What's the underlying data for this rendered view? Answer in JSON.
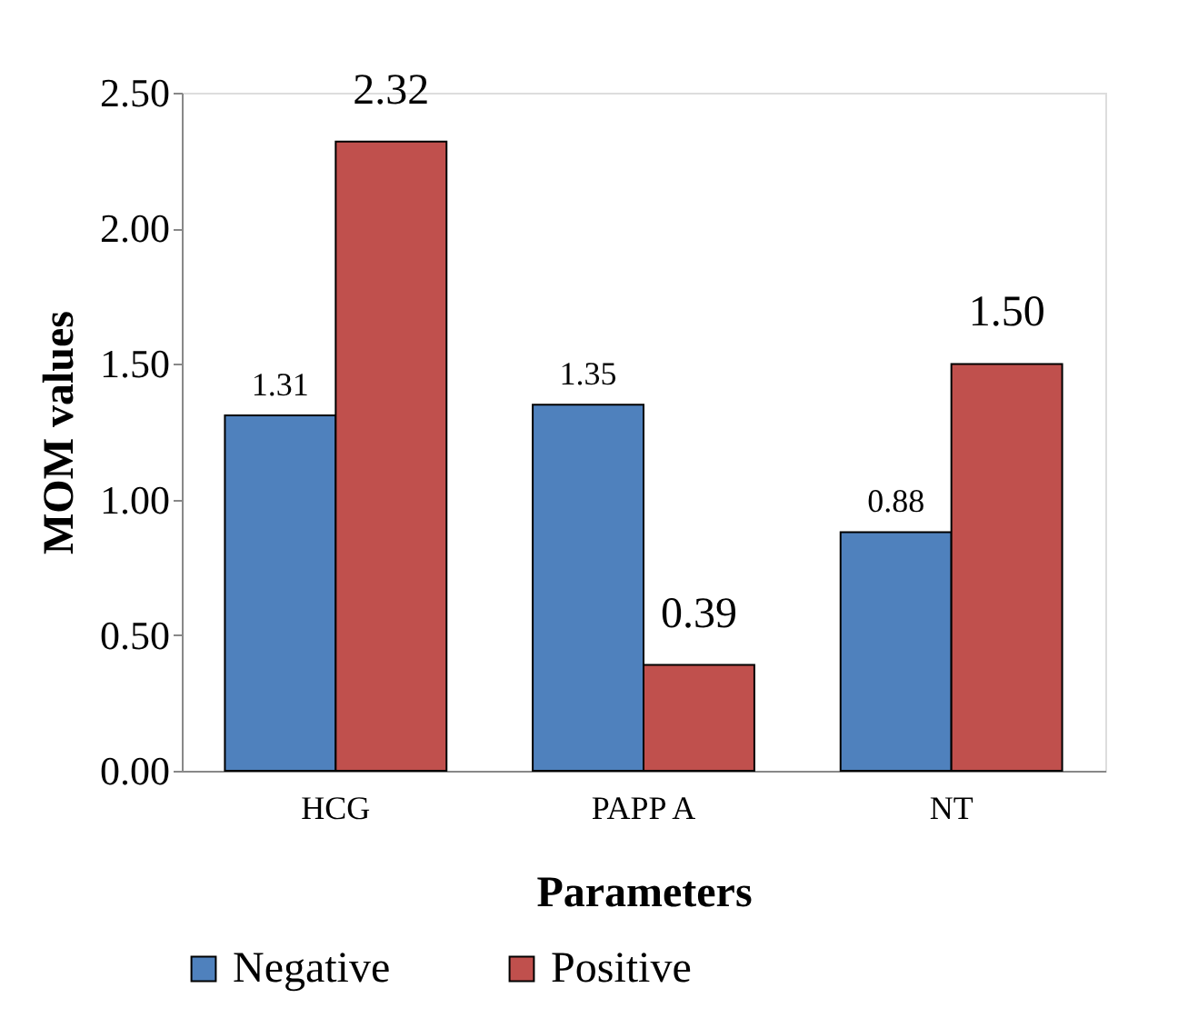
{
  "chart_data": {
    "type": "bar",
    "xlabel": "Parameters",
    "ylabel": "MOM values",
    "categories": [
      "HCG",
      "PAPP A",
      "NT"
    ],
    "series": [
      {
        "name": "Negative",
        "color": "#4f81bd",
        "values": [
          1.31,
          1.35,
          0.88
        ],
        "value_labels": [
          "1.31",
          "1.35",
          "0.88"
        ]
      },
      {
        "name": "Positive",
        "color": "#c0504d",
        "values": [
          2.32,
          0.39,
          1.5
        ],
        "value_labels": [
          "2.32",
          "0.39",
          "1.50"
        ]
      }
    ],
    "ylim": [
      0,
      2.5
    ],
    "yticks": [
      {
        "value": 0,
        "label": "0.00"
      },
      {
        "value": 0.5,
        "label": "0.50"
      },
      {
        "value": 1,
        "label": "1.00"
      },
      {
        "value": 1.5,
        "label": "1.50"
      },
      {
        "value": 2,
        "label": "2.00"
      },
      {
        "value": 2.5,
        "label": "2.50"
      }
    ],
    "grid": false,
    "legend": "bottom"
  }
}
